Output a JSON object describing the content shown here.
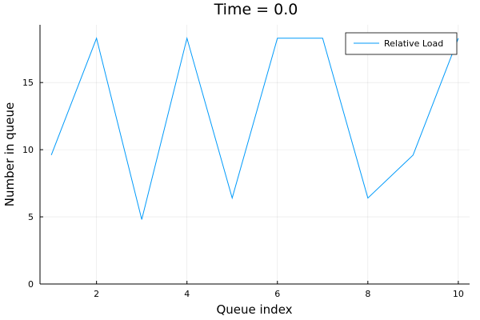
{
  "chart_data": {
    "type": "line",
    "title": "Time = 0.0",
    "xlabel": "Queue index",
    "ylabel": "Number in queue",
    "xlim": [
      0.75,
      10.25
    ],
    "ylim": [
      0,
      19.3
    ],
    "xticks": [
      2,
      4,
      6,
      8,
      10
    ],
    "yticks": [
      0,
      5,
      10,
      15
    ],
    "grid": true,
    "legend_position": "top-right",
    "series": [
      {
        "name": "Relative Load",
        "color": "#009AFA",
        "x": [
          1,
          2,
          3,
          4,
          5,
          6,
          7,
          8,
          9,
          10
        ],
        "y": [
          9.6,
          18.3,
          4.8,
          18.3,
          6.4,
          18.3,
          18.3,
          6.4,
          9.6,
          18.3
        ]
      }
    ]
  }
}
